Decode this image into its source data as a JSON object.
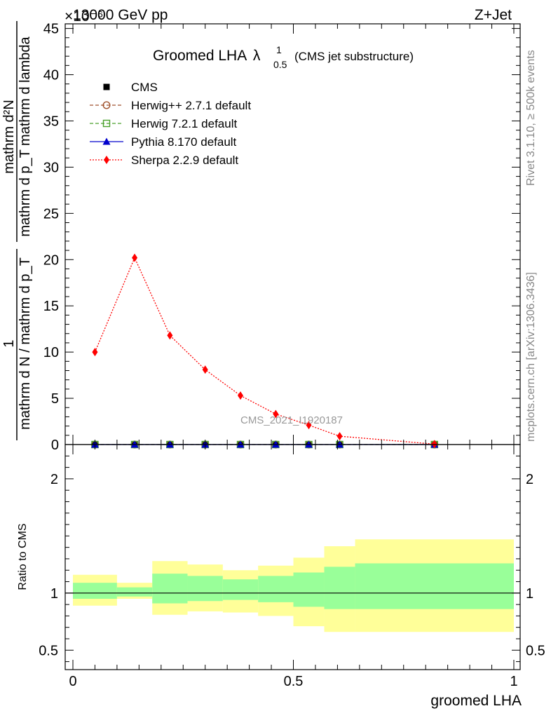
{
  "header": {
    "left": "13000 GeV pp",
    "right": "Z+Jet",
    "exponent": "×10⁻⁶"
  },
  "side_labels": {
    "rivet": "Rivet 3.1.10, ≥ 500k events",
    "mcplots": "mcplots.cern.ch [arXiv:1306.3436]"
  },
  "watermark": "CMS_2021_I1920187",
  "colors": {
    "cms": "#000000",
    "herwigpp": "#a0522d",
    "herwig7": "#4aa02c",
    "pythia": "#0000cc",
    "sherpa": "#ff0000",
    "band_outer": "#ffff99",
    "band_inner": "#99ff99"
  },
  "chart_data": {
    "type": "line",
    "title_main": "Groomed LHA",
    "title_symbol": "λ",
    "title_sup": "1",
    "title_sub": "0.5",
    "title_suffix": "(CMS jet substructure)",
    "ylabel_numerator": "mathrm d²N",
    "ylabel_denominator": "mathrm d p_T mathrm d lambda",
    "ylabel_prefix_numerator": "1",
    "ylabel_prefix_denominator": "mathrm d N / mathrm d p_T",
    "xlabel": "groomed LHA",
    "xlim": [
      0,
      1
    ],
    "ylim": [
      0,
      45.5
    ],
    "y_ticks": [
      0,
      5,
      10,
      15,
      20,
      25,
      30,
      35,
      40,
      45
    ],
    "y_tick_labels": [
      "0",
      "5",
      "10",
      "15",
      "20",
      "25",
      "30",
      "35",
      "40",
      "45"
    ],
    "x_ticks": [
      0,
      0.5,
      1
    ],
    "x_tick_labels": [
      "0",
      "0.5",
      "1"
    ],
    "bin_edges": [
      0,
      0.1,
      0.18,
      0.26,
      0.34,
      0.42,
      0.5,
      0.57,
      0.64,
      1.0
    ],
    "series": [
      {
        "name": "CMS",
        "key": "cms",
        "marker": "square",
        "x": [
          0.05,
          0.14,
          0.22,
          0.3,
          0.38,
          0.46,
          0.535,
          0.605,
          0.82
        ],
        "y": [
          0,
          0,
          0,
          0,
          0,
          0,
          0,
          0,
          0
        ]
      },
      {
        "name": "Herwig++ 2.7.1 default",
        "key": "herwigpp",
        "marker": "circle",
        "x": [
          0.05,
          0.14,
          0.22,
          0.3,
          0.38,
          0.46,
          0.535,
          0.605,
          0.82
        ],
        "y": [
          0,
          0,
          0,
          0,
          0,
          0,
          0,
          0,
          0
        ]
      },
      {
        "name": "Herwig 7.2.1 default",
        "key": "herwig7",
        "marker": "opensquare",
        "x": [
          0.05,
          0.14,
          0.22,
          0.3,
          0.38,
          0.46,
          0.535,
          0.605,
          0.82
        ],
        "y": [
          0,
          0,
          0,
          0,
          0,
          0,
          0,
          0,
          0
        ]
      },
      {
        "name": "Pythia 8.170 default",
        "key": "pythia",
        "marker": "triangle",
        "x": [
          0.05,
          0.14,
          0.22,
          0.3,
          0.38,
          0.46,
          0.535,
          0.605,
          0.82
        ],
        "y": [
          0,
          0,
          0,
          0,
          0,
          0,
          0,
          0,
          0
        ]
      },
      {
        "name": "Sherpa 2.2.9 default",
        "key": "sherpa",
        "marker": "diamond",
        "x": [
          0.05,
          0.14,
          0.22,
          0.3,
          0.38,
          0.46,
          0.535,
          0.605,
          0.82
        ],
        "y": [
          10.0,
          20.2,
          11.8,
          8.1,
          5.3,
          3.3,
          2.1,
          0.9,
          0.05
        ]
      }
    ],
    "ratio": {
      "ylabel": "Ratio to CMS",
      "ylim": [
        0.33,
        2.3
      ],
      "y_ticks": [
        0.5,
        1,
        2
      ],
      "y_tick_labels": [
        "0.5",
        "1",
        "2"
      ],
      "band_outer_lo": [
        0.89,
        0.95,
        0.81,
        0.84,
        0.83,
        0.8,
        0.71,
        0.66,
        0.66
      ],
      "band_outer_hi": [
        1.16,
        1.09,
        1.28,
        1.25,
        1.2,
        1.24,
        1.31,
        1.41,
        1.47
      ],
      "band_inner_lo": [
        0.95,
        0.97,
        0.91,
        0.93,
        0.94,
        0.92,
        0.88,
        0.86,
        0.86
      ],
      "band_inner_hi": [
        1.09,
        1.05,
        1.17,
        1.15,
        1.12,
        1.15,
        1.18,
        1.23,
        1.26
      ]
    }
  }
}
